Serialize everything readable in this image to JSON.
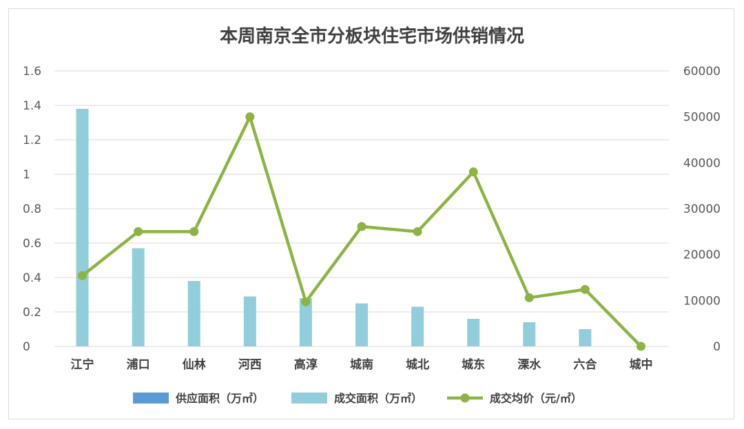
{
  "chart_data": {
    "type": "bar",
    "title": "本周南京全市分板块住宅市场供销情况",
    "categories": [
      "江宁",
      "浦口",
      "仙林",
      "河西",
      "高淳",
      "城南",
      "城北",
      "城东",
      "溧水",
      "六合",
      "城中"
    ],
    "y_left": {
      "min": 0,
      "max": 1.6,
      "ticks": [
        "0",
        "0.2",
        "0.4",
        "0.6",
        "0.8",
        "1",
        "1.2",
        "1.4",
        "1.6"
      ]
    },
    "y_right": {
      "min": 0,
      "max": 60000,
      "ticks": [
        "0",
        "10000",
        "20000",
        "30000",
        "40000",
        "50000",
        "60000"
      ]
    },
    "grid": true,
    "legend_position": "bottom",
    "series": [
      {
        "name": "供应面积（万㎡）",
        "type": "bar",
        "axis": "left",
        "color": "#5b9bd5",
        "values": [
          0,
          0,
          0,
          0,
          0,
          0,
          0,
          0,
          0,
          0,
          0
        ]
      },
      {
        "name": "成交面积（万㎡）",
        "type": "bar",
        "axis": "left",
        "color": "#92cddc",
        "values": [
          1.38,
          0.57,
          0.38,
          0.29,
          0.28,
          0.25,
          0.23,
          0.16,
          0.14,
          0.1,
          0
        ]
      },
      {
        "name": "成交均价（元/㎡）",
        "type": "line",
        "axis": "right",
        "color": "#8db442",
        "values": [
          15400,
          25000,
          25000,
          50000,
          9700,
          26100,
          25000,
          38000,
          10600,
          12400,
          0
        ]
      }
    ]
  }
}
